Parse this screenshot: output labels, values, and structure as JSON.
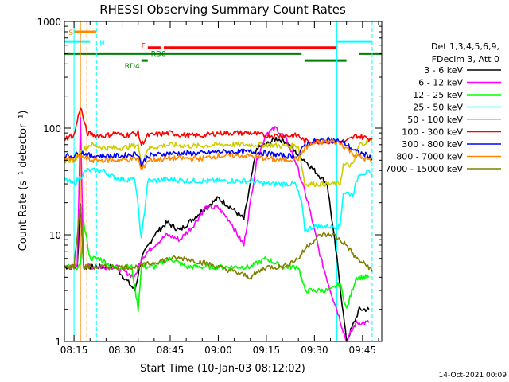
{
  "chart_data": {
    "type": "line",
    "title": "RHESSI Observing Summary Count Rates",
    "xlabel": "Start Time (10-Jan-03 08:12:02)",
    "ylabel": "Count Rate (s⁻¹ detector⁻¹)",
    "yscale": "log",
    "ylim": [
      1,
      1000
    ],
    "xlim": [
      "08:12",
      "09:51"
    ],
    "x_ticks": [
      "08:15",
      "08:30",
      "08:45",
      "09:00",
      "09:15",
      "09:30",
      "09:45"
    ],
    "y_ticks": [
      "1",
      "10",
      "100",
      "1000"
    ],
    "grid": false,
    "legend_position": "right",
    "legend_header": [
      "Det 1,3,4,5,6,9,",
      "FDecim 3, Att 0"
    ],
    "series": [
      {
        "name": "3 - 6 keV",
        "color": "#000000",
        "points": [
          [
            "08:12",
            5
          ],
          [
            "08:16",
            5
          ],
          [
            "08:17",
            20
          ],
          [
            "08:18",
            5
          ],
          [
            "08:22",
            5
          ],
          [
            "08:28",
            5
          ],
          [
            "08:34",
            3
          ],
          [
            "08:36",
            6
          ],
          [
            "08:40",
            10
          ],
          [
            "08:44",
            13
          ],
          [
            "08:48",
            11
          ],
          [
            "08:52",
            14
          ],
          [
            "08:56",
            18
          ],
          [
            "09:00",
            22
          ],
          [
            "09:04",
            18
          ],
          [
            "09:08",
            14
          ],
          [
            "09:10",
            30
          ],
          [
            "09:12",
            65
          ],
          [
            "09:15",
            70
          ],
          [
            "09:18",
            80
          ],
          [
            "09:21",
            75
          ],
          [
            "09:24",
            60
          ],
          [
            "09:27",
            50
          ],
          [
            "09:30",
            40
          ],
          [
            "09:34",
            30
          ],
          [
            "09:37",
            6
          ],
          [
            "09:40",
            1
          ],
          [
            "09:44",
            2
          ],
          [
            "09:47",
            2
          ]
        ]
      },
      {
        "name": "6 - 12 keV",
        "color": "#ff00ff",
        "points": [
          [
            "08:12",
            5
          ],
          [
            "08:16",
            5
          ],
          [
            "08:17",
            120
          ],
          [
            "08:18",
            5
          ],
          [
            "08:22",
            5
          ],
          [
            "08:28",
            5
          ],
          [
            "08:34",
            4
          ],
          [
            "08:36",
            6
          ],
          [
            "08:40",
            8
          ],
          [
            "08:44",
            10
          ],
          [
            "08:48",
            9
          ],
          [
            "08:52",
            12
          ],
          [
            "08:56",
            18
          ],
          [
            "09:00",
            18
          ],
          [
            "09:04",
            13
          ],
          [
            "09:06",
            10
          ],
          [
            "09:08",
            8
          ],
          [
            "09:10",
            20
          ],
          [
            "09:12",
            50
          ],
          [
            "09:15",
            90
          ],
          [
            "09:18",
            100
          ],
          [
            "09:21",
            80
          ],
          [
            "09:24",
            50
          ],
          [
            "09:28",
            20
          ],
          [
            "09:32",
            6
          ],
          [
            "09:35",
            3
          ],
          [
            "09:37",
            2
          ],
          [
            "09:40",
            1
          ],
          [
            "09:43",
            1.5
          ],
          [
            "09:47",
            1.5
          ]
        ]
      },
      {
        "name": "12 - 25 keV",
        "color": "#00ff00",
        "points": [
          [
            "08:12",
            5
          ],
          [
            "08:17",
            5
          ],
          [
            "08:18",
            13
          ],
          [
            "08:20",
            6
          ],
          [
            "08:23",
            6
          ],
          [
            "08:27",
            5
          ],
          [
            "08:30",
            5
          ],
          [
            "08:33",
            5
          ],
          [
            "08:35",
            2
          ],
          [
            "08:36",
            5
          ],
          [
            "08:40",
            5
          ],
          [
            "08:45",
            6
          ],
          [
            "08:50",
            5
          ],
          [
            "08:55",
            5
          ],
          [
            "09:00",
            5
          ],
          [
            "09:05",
            5
          ],
          [
            "09:10",
            5
          ],
          [
            "09:15",
            6
          ],
          [
            "09:20",
            5
          ],
          [
            "09:25",
            5
          ],
          [
            "09:27",
            3
          ],
          [
            "09:30",
            3
          ],
          [
            "09:35",
            3
          ],
          [
            "09:38",
            3.5
          ],
          [
            "09:40",
            2
          ],
          [
            "09:43",
            4
          ],
          [
            "09:47",
            4
          ]
        ]
      },
      {
        "name": "25 - 50 keV",
        "color": "#00ffff",
        "points": [
          [
            "08:12",
            33
          ],
          [
            "08:15",
            30
          ],
          [
            "08:17",
            35
          ],
          [
            "08:19",
            40
          ],
          [
            "08:22",
            40
          ],
          [
            "08:24",
            40
          ],
          [
            "08:27",
            35
          ],
          [
            "08:30",
            33
          ],
          [
            "08:34",
            33
          ],
          [
            "08:35",
            18
          ],
          [
            "08:36",
            9
          ],
          [
            "08:38",
            32
          ],
          [
            "08:45",
            33
          ],
          [
            "08:50",
            32
          ],
          [
            "08:55",
            32
          ],
          [
            "09:00",
            32
          ],
          [
            "09:05",
            32
          ],
          [
            "09:10",
            32
          ],
          [
            "09:15",
            30
          ],
          [
            "09:20",
            30
          ],
          [
            "09:24",
            30
          ],
          [
            "09:26",
            20
          ],
          [
            "09:27",
            11
          ],
          [
            "09:30",
            12
          ],
          [
            "09:35",
            12
          ],
          [
            "09:38",
            12
          ],
          [
            "09:39",
            25
          ],
          [
            "09:42",
            24
          ],
          [
            "09:44",
            38
          ],
          [
            "09:47",
            38
          ],
          [
            "09:48",
            35
          ]
        ]
      },
      {
        "name": "50 - 100 keV",
        "color": "#cccc00",
        "points": [
          [
            "08:12",
            50
          ],
          [
            "08:15",
            50
          ],
          [
            "08:17",
            60
          ],
          [
            "08:20",
            70
          ],
          [
            "08:25",
            65
          ],
          [
            "08:30",
            65
          ],
          [
            "08:35",
            70
          ],
          [
            "08:36",
            45
          ],
          [
            "08:38",
            65
          ],
          [
            "08:45",
            70
          ],
          [
            "08:50",
            68
          ],
          [
            "08:55",
            68
          ],
          [
            "09:00",
            70
          ],
          [
            "09:05",
            70
          ],
          [
            "09:10",
            70
          ],
          [
            "09:15",
            70
          ],
          [
            "09:20",
            68
          ],
          [
            "09:25",
            68
          ],
          [
            "09:27",
            30
          ],
          [
            "09:30",
            30
          ],
          [
            "09:35",
            30
          ],
          [
            "09:38",
            30
          ],
          [
            "09:39",
            45
          ],
          [
            "09:42",
            45
          ],
          [
            "09:44",
            70
          ],
          [
            "09:47",
            75
          ],
          [
            "09:48",
            75
          ]
        ]
      },
      {
        "name": "100 - 300 keV",
        "color": "#ff0000",
        "points": [
          [
            "08:12",
            80
          ],
          [
            "08:15",
            85
          ],
          [
            "08:17",
            160
          ],
          [
            "08:19",
            90
          ],
          [
            "08:22",
            85
          ],
          [
            "08:25",
            85
          ],
          [
            "08:28",
            90
          ],
          [
            "08:30",
            85
          ],
          [
            "08:35",
            90
          ],
          [
            "08:36",
            70
          ],
          [
            "08:38",
            85
          ],
          [
            "08:45",
            90
          ],
          [
            "08:50",
            85
          ],
          [
            "08:55",
            85
          ],
          [
            "09:00",
            90
          ],
          [
            "09:05",
            90
          ],
          [
            "09:10",
            90
          ],
          [
            "09:15",
            85
          ],
          [
            "09:20",
            85
          ],
          [
            "09:25",
            85
          ],
          [
            "09:27",
            75
          ],
          [
            "09:30",
            75
          ],
          [
            "09:35",
            75
          ],
          [
            "09:38",
            75
          ],
          [
            "09:40",
            75
          ],
          [
            "09:43",
            85
          ],
          [
            "09:47",
            80
          ],
          [
            "09:48",
            80
          ]
        ]
      },
      {
        "name": "300 - 800 keV",
        "color": "#0000ff",
        "points": [
          [
            "08:12",
            55
          ],
          [
            "08:15",
            55
          ],
          [
            "08:17",
            60
          ],
          [
            "08:20",
            55
          ],
          [
            "08:25",
            55
          ],
          [
            "08:30",
            55
          ],
          [
            "08:35",
            58
          ],
          [
            "08:36",
            45
          ],
          [
            "08:38",
            55
          ],
          [
            "08:45",
            58
          ],
          [
            "08:50",
            58
          ],
          [
            "08:55",
            58
          ],
          [
            "09:00",
            60
          ],
          [
            "09:05",
            60
          ],
          [
            "09:10",
            60
          ],
          [
            "09:15",
            58
          ],
          [
            "09:20",
            55
          ],
          [
            "09:25",
            55
          ],
          [
            "09:27",
            70
          ],
          [
            "09:30",
            75
          ],
          [
            "09:35",
            78
          ],
          [
            "09:38",
            75
          ],
          [
            "09:40",
            70
          ],
          [
            "09:43",
            60
          ],
          [
            "09:47",
            55
          ],
          [
            "09:48",
            50
          ]
        ]
      },
      {
        "name": "800 - 7000 keV",
        "color": "#ff8800",
        "points": [
          [
            "08:12",
            52
          ],
          [
            "08:15",
            50
          ],
          [
            "08:17",
            55
          ],
          [
            "08:20",
            50
          ],
          [
            "08:25",
            50
          ],
          [
            "08:30",
            50
          ],
          [
            "08:35",
            52
          ],
          [
            "08:36",
            40
          ],
          [
            "08:38",
            50
          ],
          [
            "08:45",
            52
          ],
          [
            "08:50",
            52
          ],
          [
            "08:55",
            52
          ],
          [
            "09:00",
            55
          ],
          [
            "09:05",
            55
          ],
          [
            "09:10",
            55
          ],
          [
            "09:15",
            52
          ],
          [
            "09:20",
            50
          ],
          [
            "09:25",
            52
          ],
          [
            "09:27",
            65
          ],
          [
            "09:30",
            72
          ],
          [
            "09:35",
            75
          ],
          [
            "09:38",
            72
          ],
          [
            "09:40",
            65
          ],
          [
            "09:43",
            55
          ],
          [
            "09:47",
            50
          ],
          [
            "09:48",
            48
          ]
        ]
      },
      {
        "name": "7000 - 15000 keV",
        "color": "#808000",
        "points": [
          [
            "08:12",
            5
          ],
          [
            "08:15",
            5
          ],
          [
            "08:17",
            20
          ],
          [
            "08:18",
            5
          ],
          [
            "08:22",
            5
          ],
          [
            "08:25",
            5
          ],
          [
            "08:30",
            5
          ],
          [
            "08:35",
            5
          ],
          [
            "08:40",
            5.5
          ],
          [
            "08:45",
            6
          ],
          [
            "08:50",
            6
          ],
          [
            "08:55",
            5.5
          ],
          [
            "09:00",
            5
          ],
          [
            "09:05",
            4.5
          ],
          [
            "09:10",
            4
          ],
          [
            "09:15",
            5
          ],
          [
            "09:20",
            5
          ],
          [
            "09:25",
            6
          ],
          [
            "09:28",
            8
          ],
          [
            "09:32",
            10
          ],
          [
            "09:36",
            10
          ],
          [
            "09:40",
            8
          ],
          [
            "09:43",
            6
          ],
          [
            "09:47",
            5
          ],
          [
            "09:48",
            4.5
          ]
        ]
      }
    ],
    "bands": [
      {
        "label": "S",
        "color": "#ff8800",
        "level": 800,
        "start": "08:15",
        "end": "08:22"
      },
      {
        "label": "N",
        "color": "#00ffff",
        "level": 650,
        "start": "08:12",
        "end": "08:20"
      },
      {
        "label": "N",
        "color": "#00ffff",
        "level": 650,
        "start": "09:37",
        "end": "09:48"
      },
      {
        "label": "F",
        "color": "#ff0000",
        "level": 570,
        "start": "08:38",
        "end": "08:42"
      },
      {
        "label": "F",
        "color": "#ff0000",
        "level": 570,
        "start": "08:43",
        "end": "09:37"
      },
      {
        "label": "RD0",
        "color": "#008000",
        "level": 500,
        "start": "08:12",
        "end": "09:26"
      },
      {
        "label": "RD0",
        "color": "#008000",
        "level": 500,
        "start": "09:44",
        "end": "09:51"
      },
      {
        "label": "RD4",
        "color": "#008000",
        "level": 430,
        "start": "08:36",
        "end": "08:38"
      },
      {
        "label": "RD4",
        "color": "#008000",
        "level": 430,
        "start": "09:27",
        "end": "09:40"
      }
    ],
    "vlines": [
      {
        "x": "08:15",
        "color": "#00ffff",
        "style": "solid"
      },
      {
        "x": "08:17",
        "color": "#ff8800",
        "style": "solid"
      },
      {
        "x": "08:19",
        "color": "#ff8800",
        "style": "dashed"
      },
      {
        "x": "08:22",
        "color": "#00ffff",
        "style": "dashed"
      },
      {
        "x": "09:37",
        "color": "#00ffff",
        "style": "solid"
      },
      {
        "x": "09:48",
        "color": "#00ffff",
        "style": "dashed"
      }
    ],
    "footer": "14-Oct-2021 00:09"
  }
}
